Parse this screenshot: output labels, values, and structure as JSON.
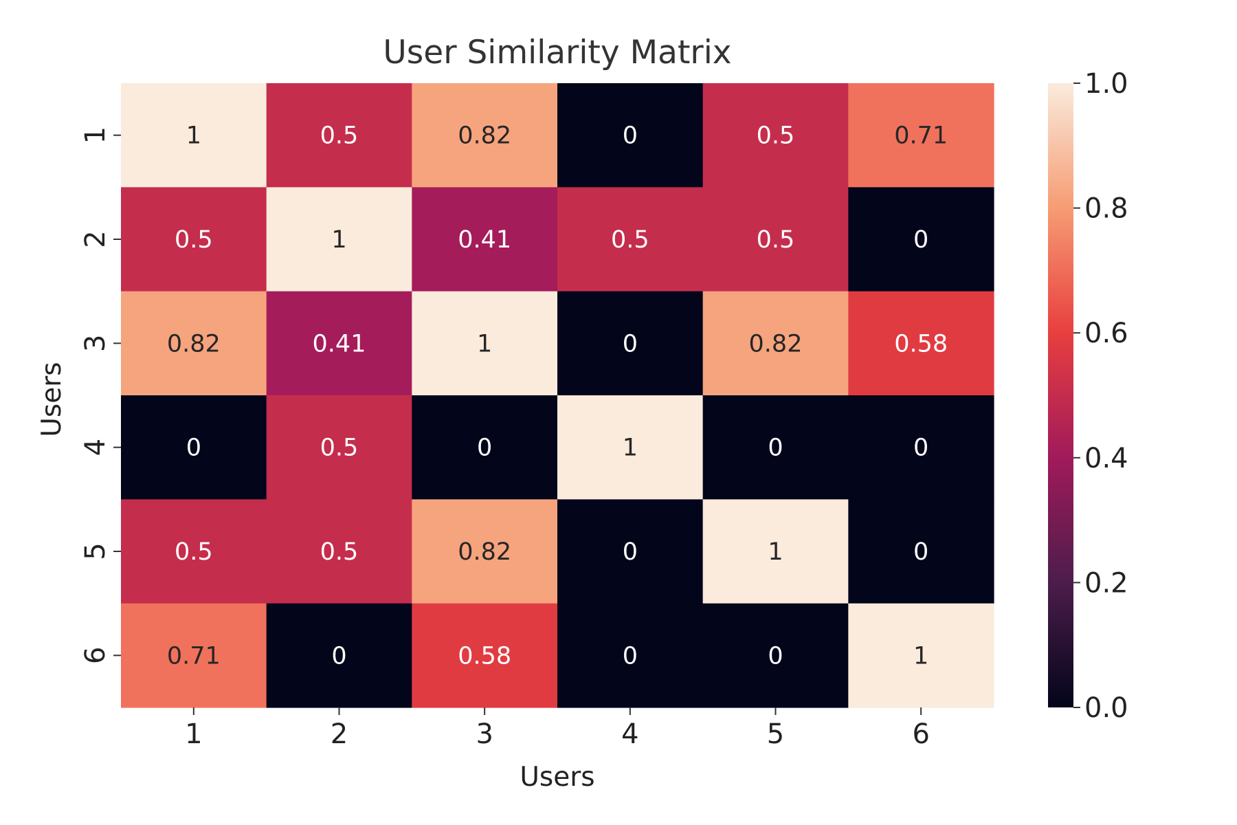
{
  "chart_data": {
    "type": "heatmap",
    "title": "User Similarity Matrix",
    "xlabel": "Users",
    "ylabel": "Users",
    "x_categories": [
      "1",
      "2",
      "3",
      "4",
      "5",
      "6"
    ],
    "y_categories": [
      "1",
      "2",
      "3",
      "4",
      "5",
      "6"
    ],
    "values": [
      [
        1,
        0.5,
        0.82,
        0,
        0.5,
        0.71
      ],
      [
        0.5,
        1,
        0.41,
        0.5,
        0.5,
        0
      ],
      [
        0.82,
        0.41,
        1,
        0,
        0.82,
        0.58
      ],
      [
        0,
        0.5,
        0,
        1,
        0,
        0
      ],
      [
        0.5,
        0.5,
        0.82,
        0,
        1,
        0
      ],
      [
        0.71,
        0,
        0.58,
        0,
        0,
        1
      ]
    ],
    "annotations": [
      [
        "1",
        "0.5",
        "0.82",
        "0",
        "0.5",
        "0.71"
      ],
      [
        "0.5",
        "1",
        "0.41",
        "0.5",
        "0.5",
        "0"
      ],
      [
        "0.82",
        "0.41",
        "1",
        "0",
        "0.82",
        "0.58"
      ],
      [
        "0",
        "0.5",
        "0",
        "1",
        "0",
        "0"
      ],
      [
        "0.5",
        "0.5",
        "0.82",
        "0",
        "1",
        "0"
      ],
      [
        "0.71",
        "0",
        "0.58",
        "0",
        "0",
        "1"
      ]
    ],
    "colorbar": {
      "range": [
        0,
        1
      ],
      "ticks": [
        "0.0",
        "0.2",
        "0.4",
        "0.6",
        "0.8",
        "1.0"
      ],
      "colormap": "rocket",
      "colors": [
        "#03051a",
        "#4c1d4b",
        "#a11a5b",
        "#e83f3f",
        "#f69c73",
        "#faebdd"
      ]
    },
    "grid": false,
    "legend": "right"
  }
}
